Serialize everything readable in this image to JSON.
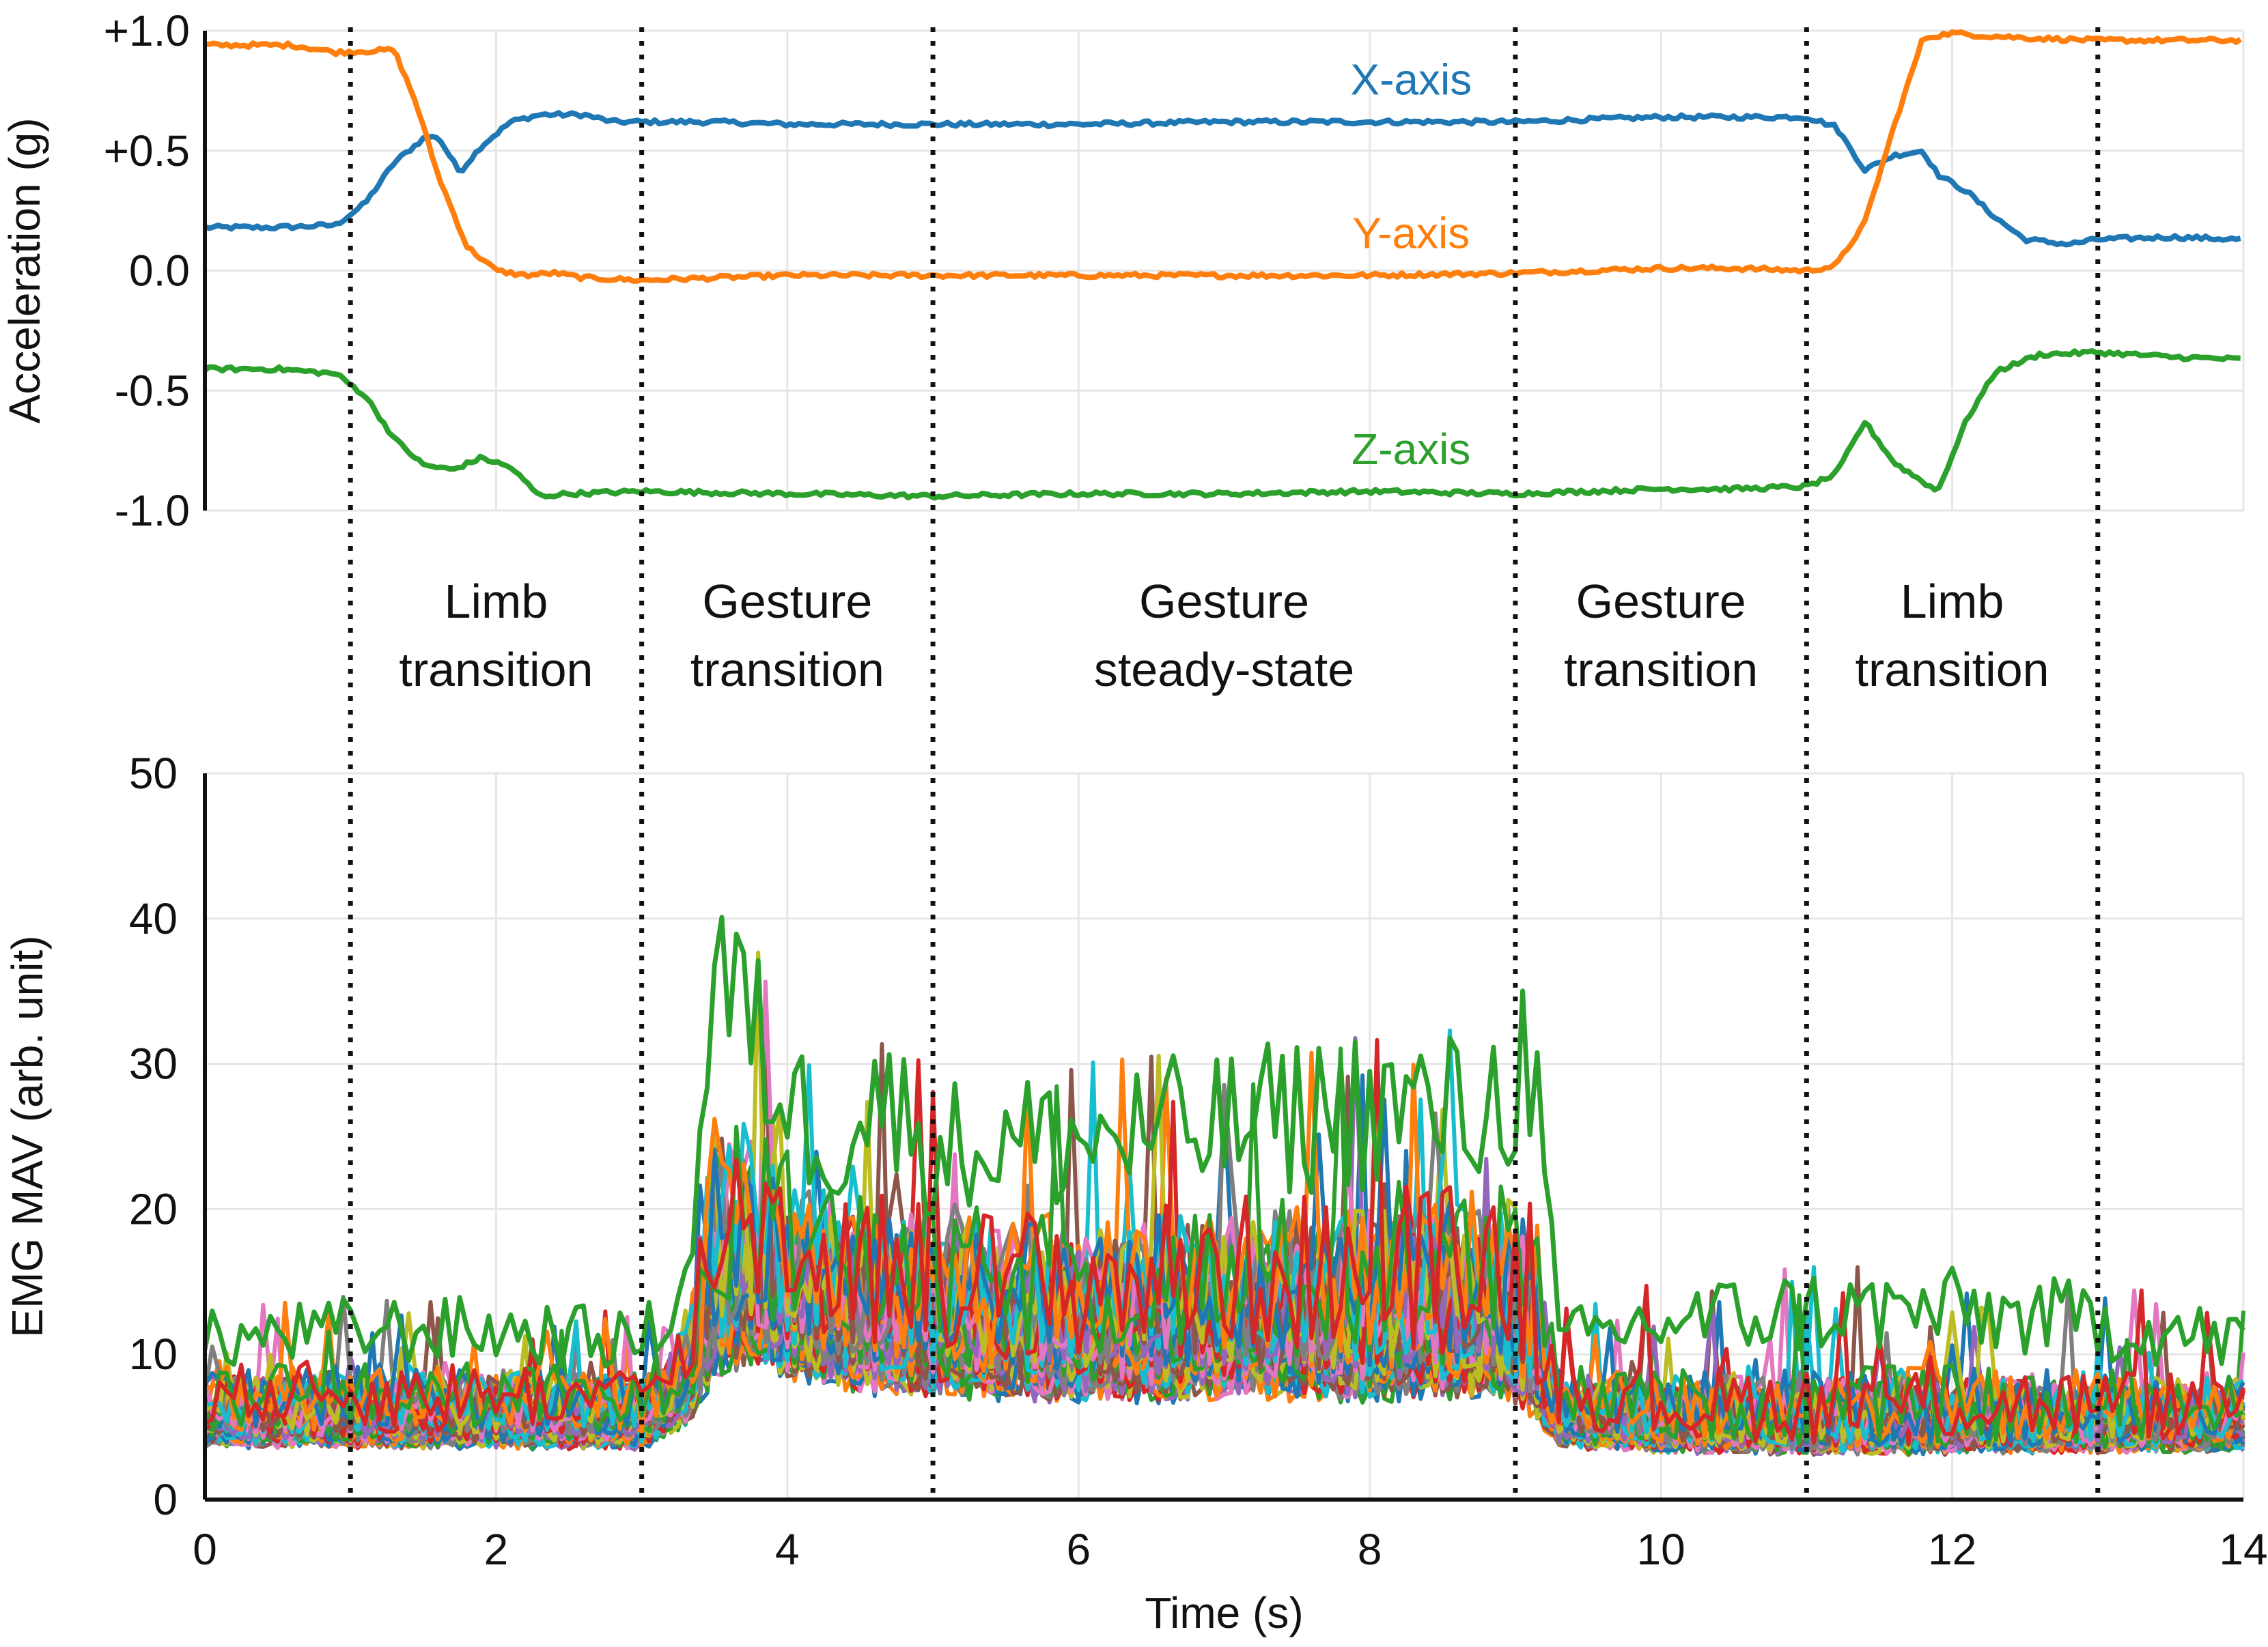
{
  "chart_data": [
    {
      "type": "line",
      "panel": "top",
      "ylabel": "Acceleration (g)",
      "xlim": [
        0,
        14
      ],
      "ylim": [
        -1.0,
        1.0
      ],
      "yticks": [
        1.0,
        0.5,
        0.0,
        -0.5,
        -1.0
      ],
      "ytick_labels": [
        "+1.0",
        "+0.5",
        "0.0",
        "-0.5",
        "-1.0"
      ],
      "grid": true,
      "series": [
        {
          "name": "X-axis",
          "color": "#1f77b4",
          "x": [
            0,
            0.5,
            0.9,
            1.1,
            1.3,
            1.5,
            1.6,
            1.75,
            1.9,
            2.1,
            2.3,
            2.6,
            2.8,
            3.0,
            3.5,
            4.0,
            5.0,
            6.0,
            7.0,
            8.0,
            9.0,
            9.5,
            10.0,
            10.5,
            11.0,
            11.2,
            11.4,
            11.6,
            11.8,
            11.9,
            12.1,
            12.3,
            12.5,
            12.8,
            13.0,
            13.5,
            14.0
          ],
          "y": [
            0.18,
            0.18,
            0.19,
            0.28,
            0.45,
            0.55,
            0.56,
            0.41,
            0.52,
            0.62,
            0.65,
            0.65,
            0.62,
            0.62,
            0.62,
            0.61,
            0.61,
            0.61,
            0.62,
            0.62,
            0.62,
            0.63,
            0.64,
            0.64,
            0.64,
            0.6,
            0.42,
            0.48,
            0.5,
            0.4,
            0.33,
            0.22,
            0.13,
            0.11,
            0.13,
            0.14,
            0.13
          ]
        },
        {
          "name": "Y-axis",
          "color": "#ff7f0e",
          "x": [
            0,
            0.6,
            0.9,
            1.3,
            1.45,
            1.6,
            1.8,
            2.0,
            2.2,
            2.4,
            2.6,
            3.0,
            4.0,
            5.0,
            6.0,
            7.0,
            8.0,
            9.0,
            9.5,
            10.0,
            10.5,
            11.0,
            11.2,
            11.4,
            11.6,
            11.8,
            12.0,
            12.2,
            12.5,
            13.0,
            14.0
          ],
          "y": [
            0.94,
            0.94,
            0.91,
            0.92,
            0.7,
            0.4,
            0.1,
            0.0,
            -0.02,
            -0.01,
            -0.03,
            -0.04,
            -0.02,
            -0.02,
            -0.02,
            -0.02,
            -0.02,
            -0.01,
            0.0,
            0.01,
            0.01,
            0.0,
            0.02,
            0.2,
            0.6,
            0.97,
            0.99,
            0.98,
            0.97,
            0.96,
            0.96
          ]
        },
        {
          "name": "Z-axis",
          "color": "#2ca02c",
          "x": [
            0,
            0.5,
            0.9,
            1.1,
            1.3,
            1.5,
            1.7,
            1.9,
            2.1,
            2.3,
            2.5,
            3.0,
            4.0,
            5.0,
            6.0,
            7.0,
            8.0,
            9.0,
            9.5,
            10.0,
            10.5,
            11.0,
            11.2,
            11.4,
            11.6,
            11.8,
            11.9,
            12.1,
            12.3,
            12.6,
            13.0,
            13.5,
            14.0
          ],
          "y": [
            -0.41,
            -0.41,
            -0.43,
            -0.52,
            -0.7,
            -0.81,
            -0.83,
            -0.78,
            -0.82,
            -0.94,
            -0.93,
            -0.92,
            -0.93,
            -0.94,
            -0.93,
            -0.93,
            -0.92,
            -0.93,
            -0.92,
            -0.91,
            -0.91,
            -0.9,
            -0.85,
            -0.63,
            -0.8,
            -0.88,
            -0.92,
            -0.62,
            -0.42,
            -0.35,
            -0.34,
            -0.36,
            -0.37
          ]
        }
      ]
    },
    {
      "type": "line",
      "panel": "bottom",
      "xlabel": "Time (s)",
      "ylabel": "EMG MAV (arb. unit)",
      "xlim": [
        0,
        14
      ],
      "ylim": [
        0,
        50
      ],
      "xticks": [
        0,
        2,
        4,
        6,
        8,
        10,
        12,
        14
      ],
      "yticks": [
        0,
        10,
        20,
        30,
        40,
        50
      ],
      "grid": true,
      "n_channels": 64,
      "envelope": {
        "x": [
          0,
          1,
          2,
          3,
          3.3,
          3.5,
          3.7,
          4.0,
          4.3,
          4.6,
          5.0,
          6.0,
          7.0,
          8.0,
          8.8,
          9.1,
          9.3,
          10.0,
          11.0,
          12.0,
          13.0,
          14.0
        ],
        "mean": [
          5.5,
          5.5,
          5.5,
          5.3,
          7.5,
          14.0,
          15.0,
          13.5,
          12.5,
          12.0,
          11.5,
          11.0,
          11.5,
          11.5,
          12.0,
          11.0,
          5.5,
          5.0,
          5.0,
          5.0,
          5.0,
          5.0
        ],
        "max": [
          13,
          14,
          14,
          13,
          17,
          45,
          40,
          33,
          29,
          34,
          29,
          30,
          31,
          33,
          32,
          39,
          13,
          15,
          16,
          16,
          15,
          13
        ],
        "min": [
          2.5,
          2.5,
          2.5,
          2.5,
          3.5,
          5.5,
          6.0,
          5.5,
          5.0,
          5.0,
          4.5,
          4.5,
          4.5,
          4.5,
          4.5,
          4.0,
          2.5,
          2.5,
          2.5,
          2.5,
          2.5,
          2.5
        ]
      }
    }
  ],
  "phase_dividers_s": [
    1,
    3,
    5,
    9,
    11,
    13
  ],
  "phases": [
    {
      "line1": "Limb",
      "line2": "transition",
      "center_s": 2
    },
    {
      "line1": "Gesture",
      "line2": "transition",
      "center_s": 4
    },
    {
      "line1": "Gesture",
      "line2": "steady-state",
      "center_s": 7
    },
    {
      "line1": "Gesture",
      "line2": "transition",
      "center_s": 10
    },
    {
      "line1": "Limb",
      "line2": "transition",
      "center_s": 12
    }
  ],
  "emg_palette": [
    "#1f77b4",
    "#ff7f0e",
    "#2ca02c",
    "#d62728",
    "#9467bd",
    "#8c564b",
    "#e377c2",
    "#7f7f7f",
    "#bcbd22",
    "#17becf"
  ]
}
